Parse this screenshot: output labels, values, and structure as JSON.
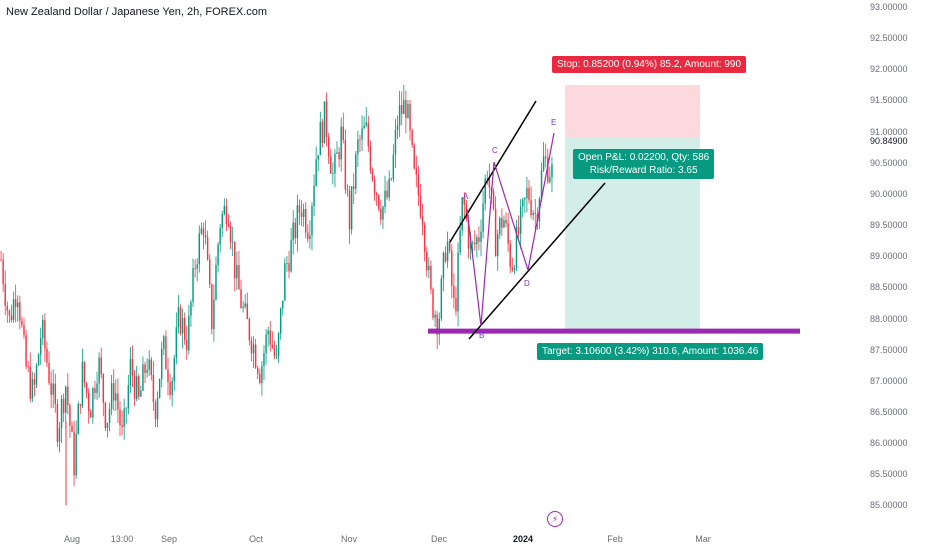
{
  "title": "New Zealand Dollar / Japanese Yen, 2h, FOREX.com",
  "chart_data": {
    "type": "candlestick",
    "title": "New Zealand Dollar / Japanese Yen, 2h, FOREX.com",
    "y_ticks": [
      "93.00000",
      "92.50000",
      "92.00000",
      "91.50000",
      "91.00000",
      "90.84900",
      "90.50000",
      "90.00000",
      "89.50000",
      "89.00000",
      "88.50000",
      "88.00000",
      "87.50000",
      "87.00000",
      "86.50000",
      "86.00000",
      "85.50000",
      "85.00000"
    ],
    "y_range": [
      84.65,
      93.0
    ],
    "x_ticks": [
      "Aug",
      "13:00",
      "Sep",
      "Oct",
      "Nov",
      "Dec",
      "2024",
      "Feb",
      "Mar"
    ],
    "current_price": "90.84900",
    "price_path": [
      88.9,
      87.9,
      88.5,
      87.2,
      86.7,
      87.8,
      87.0,
      86.2,
      86.9,
      85.6,
      87.1,
      86.5,
      87.3,
      86.3,
      86.9,
      86.0,
      87.2,
      86.6,
      87.3,
      86.5,
      87.5,
      86.9,
      88.0,
      87.6,
      88.9,
      89.5,
      87.9,
      89.5,
      89.8,
      88.6,
      88.0,
      87.6,
      87.1,
      87.8,
      87.2,
      88.7,
      89.2,
      89.8,
      89.4,
      90.7,
      91.2,
      90.2,
      90.9,
      89.5,
      90.7,
      91.0,
      90.2,
      89.7,
      90.0,
      91.2,
      91.4,
      90.2,
      89.7,
      88.3,
      87.9,
      89.3,
      88.0,
      89.9,
      89.0,
      89.3,
      90.4,
      89.2,
      89.6,
      88.8,
      89.4,
      90.0,
      89.6,
      90.5,
      90.3
    ],
    "candle_colors": {
      "up": "#089981",
      "down": "#f23645"
    },
    "support_level": 87.75,
    "position": {
      "stop_price": 91.7,
      "entry_price": 90.85,
      "target_price": 87.75,
      "stop_label": "Stop: 0.85200 (0.94%) 85.2, Amount: 990",
      "target_label": "Target: 3.10600 (3.42%) 310.6, Amount: 1036.46",
      "pl_line1": "Open P&L: 0.02200, Qty: 586",
      "pl_line2": "Risk/Reward Ratio: 3.65"
    },
    "pattern_points": [
      "A",
      "B",
      "C",
      "D",
      "E"
    ]
  },
  "colors": {
    "up": "#089981",
    "down": "#f23645",
    "stop_zone": "#fbd9dc",
    "target_zone": "#d3ede8",
    "support": "#9c27b0",
    "pattern": "#9c27b0"
  }
}
